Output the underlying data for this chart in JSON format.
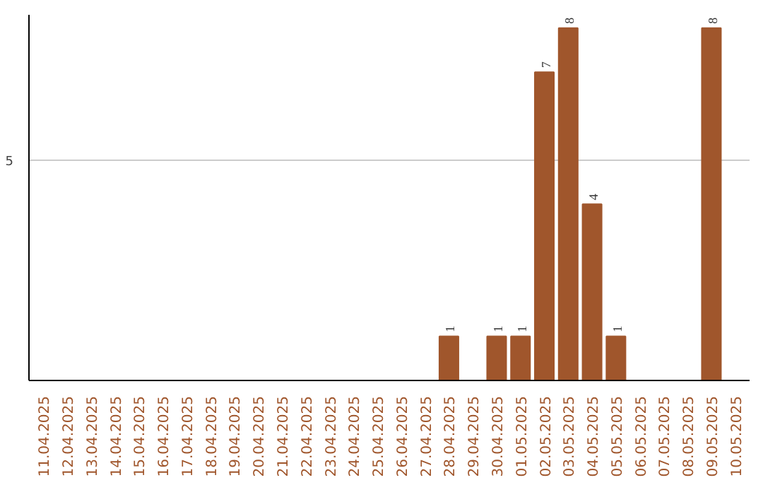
{
  "chart_data": {
    "type": "bar",
    "categories": [
      "11.04.2025",
      "12.04.2025",
      "13.04.2025",
      "14.04.2025",
      "15.04.2025",
      "16.04.2025",
      "17.04.2025",
      "18.04.2025",
      "19.04.2025",
      "20.04.2025",
      "21.04.2025",
      "22.04.2025",
      "23.04.2025",
      "24.04.2025",
      "25.04.2025",
      "26.04.2025",
      "27.04.2025",
      "28.04.2025",
      "29.04.2025",
      "30.04.2025",
      "01.05.2025",
      "02.05.2025",
      "03.05.2025",
      "04.05.2025",
      "05.05.2025",
      "06.05.2025",
      "07.05.2025",
      "08.05.2025",
      "09.05.2025",
      "10.05.2025"
    ],
    "values": [
      null,
      null,
      null,
      null,
      null,
      null,
      null,
      null,
      null,
      null,
      null,
      null,
      null,
      null,
      null,
      null,
      null,
      1,
      null,
      1,
      1,
      7,
      8,
      4,
      1,
      null,
      null,
      null,
      8,
      null
    ],
    "value_labels": [
      null,
      null,
      null,
      null,
      null,
      null,
      null,
      null,
      null,
      null,
      null,
      null,
      null,
      null,
      null,
      null,
      null,
      "1",
      null,
      "1",
      "1",
      "7",
      "8",
      "4",
      "1",
      null,
      null,
      null,
      "8",
      null
    ],
    "ylim": [
      0,
      8.3
    ],
    "ref_lines": [
      {
        "axis": "y",
        "value": 5,
        "label": "5",
        "color": "#cccccc"
      }
    ],
    "color": "#a0562c"
  }
}
